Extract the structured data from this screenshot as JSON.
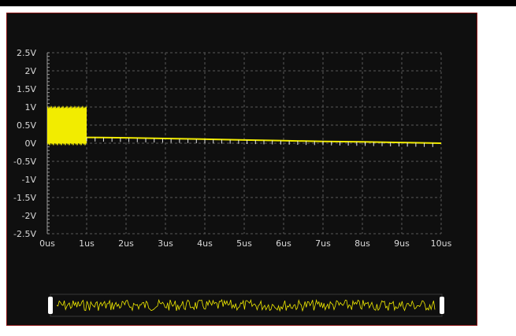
{
  "colors": {
    "background": "#0f0f0f",
    "border": "#8a1414",
    "grid": "#5a5a5a",
    "trace": "#f2ec00",
    "label": "#d8d8d8",
    "overview_border": "#3a3a3a",
    "handle": "#ffffff"
  },
  "chart_data": {
    "type": "line",
    "title": "",
    "xlabel": "",
    "ylabel": "",
    "x_ticks": [
      "0us",
      "1us",
      "2us",
      "3us",
      "4us",
      "5us",
      "6us",
      "7us",
      "8us",
      "9us",
      "10us"
    ],
    "y_ticks": [
      "2.5V",
      "2V",
      "1.5V",
      "1V",
      "0.5V",
      "0V",
      "-0.5V",
      "-1V",
      "-1.5V",
      "-2V",
      "-2.5V"
    ],
    "xlim": [
      0,
      10
    ],
    "ylim": [
      -2.5,
      2.5
    ],
    "x_unit": "us",
    "y_unit": "V",
    "grid": true,
    "series": [
      {
        "burst": {
          "x_start": 0,
          "x_end": 1,
          "y_min": 0.0,
          "y_max": 0.97
        },
        "decay": {
          "x": [
            1,
            2,
            3,
            4,
            5,
            6,
            7,
            8,
            9,
            10
          ],
          "y": [
            0.16,
            0.15,
            0.13,
            0.11,
            0.09,
            0.07,
            0.05,
            0.04,
            0.02,
            0.0
          ]
        }
      }
    ]
  },
  "overview": {
    "left_handle_icon": "handle-bar-icon",
    "right_handle_icon": "handle-bar-icon"
  }
}
